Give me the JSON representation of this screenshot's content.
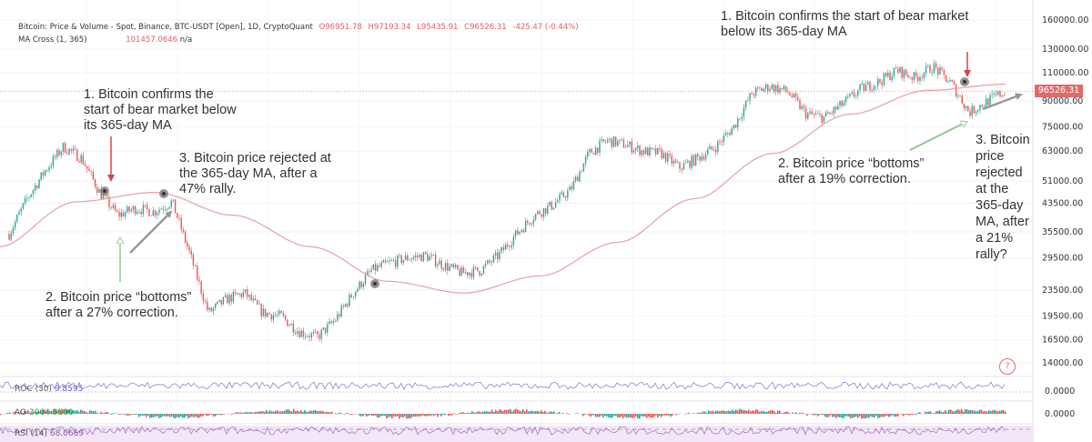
{
  "header": {
    "symbol": "Bitcoin: Price & Volume - Spot, Binance, BTC-USDT [Open], 1D, CryptoQuant",
    "open": "O96951.78",
    "high": "H97193.34",
    "low": "L95435.91",
    "close": "C96526.31",
    "change": "-425.47 (-0.44%)",
    "ma_label": "MA Cross (1, 365)",
    "ma_value": "101457.0646",
    "ma_extra": "n/a"
  },
  "price_tag": "96526.31",
  "help_icon": "?",
  "indicators": {
    "roc": {
      "label": "ROC (30)",
      "value": "9.8595",
      "axis": "0.0000"
    },
    "ao": {
      "label": "AO",
      "value": "3964.9800",
      "axis": "0.0000"
    },
    "rsi": {
      "label": "RSI (14)",
      "value": "68.0669"
    }
  },
  "annotations": {
    "left_1": "1. Bitcoin confirms the\nstart of bear market below\nits 365-day MA",
    "left_2": "2. Bitcoin price “bottoms”\nafter a 27% correction.",
    "left_3": "3. Bitcoin price rejected at\nthe 365-day MA, after a\n47% rally.",
    "right_1": "1. Bitcoin confirms the start of bear market\nbelow its 365-day MA",
    "right_2": "2. Bitcoin price “bottoms”\nafter a 19% correction.",
    "right_3": "3. Bitcoin\nprice\nrejected\nat the\n365-day\nMA, after\na 21%\nrally?"
  },
  "colors": {
    "up": "#26a69a",
    "down": "#ef5350",
    "ma": "#e8a0a0",
    "arrow_red": "#e04040",
    "arrow_green": "#8fc98f",
    "arrow_gray": "#999999",
    "price_tag": "#e06b6b",
    "rsi_band": "#f3e6f7"
  },
  "chart_data": {
    "type": "candlestick",
    "yscale": "log",
    "ylim": [
      14000,
      160000
    ],
    "yticks": [
      160000,
      130000,
      110000,
      90000,
      75000,
      63000,
      51000,
      43500,
      35500,
      29500,
      23500,
      19500,
      16500,
      14000
    ],
    "ytick_labels": [
      "160000.00",
      "130000.00",
      "110000.00",
      "90000.00",
      "75000.00",
      "63000.00",
      "51000.00",
      "43500.00",
      "35500.00",
      "29500.00",
      "23500.00",
      "19500.00",
      "16500.00",
      "14000.00"
    ],
    "series": [
      {
        "name": "Bitcoin: Price & Volume",
        "approx_close_path": [
          35000,
          45000,
          55000,
          65000,
          60000,
          47000,
          40000,
          42000,
          41000,
          44000,
          30000,
          20000,
          22000,
          23000,
          20000,
          19500,
          17500,
          16800,
          19000,
          23000,
          27000,
          28500,
          29500,
          30000,
          28000,
          26500,
          27000,
          30000,
          35000,
          40000,
          43000,
          48000,
          62000,
          68000,
          66000,
          63000,
          62000,
          56000,
          60000,
          65000,
          75000,
          95000,
          100000,
          96000,
          82000,
          80000,
          88000,
          98000,
          103000,
          112000,
          106000,
          115000,
          102000,
          83000,
          90000,
          96526.31
        ]
      },
      {
        "name": "MA Cross (1, 365)",
        "approx_path": [
          32000,
          44000,
          47000,
          40000,
          32000,
          25000,
          23000,
          26000,
          33000,
          45000,
          62000,
          82000,
          97000,
          101457.0646
        ]
      }
    ],
    "grid": true
  }
}
